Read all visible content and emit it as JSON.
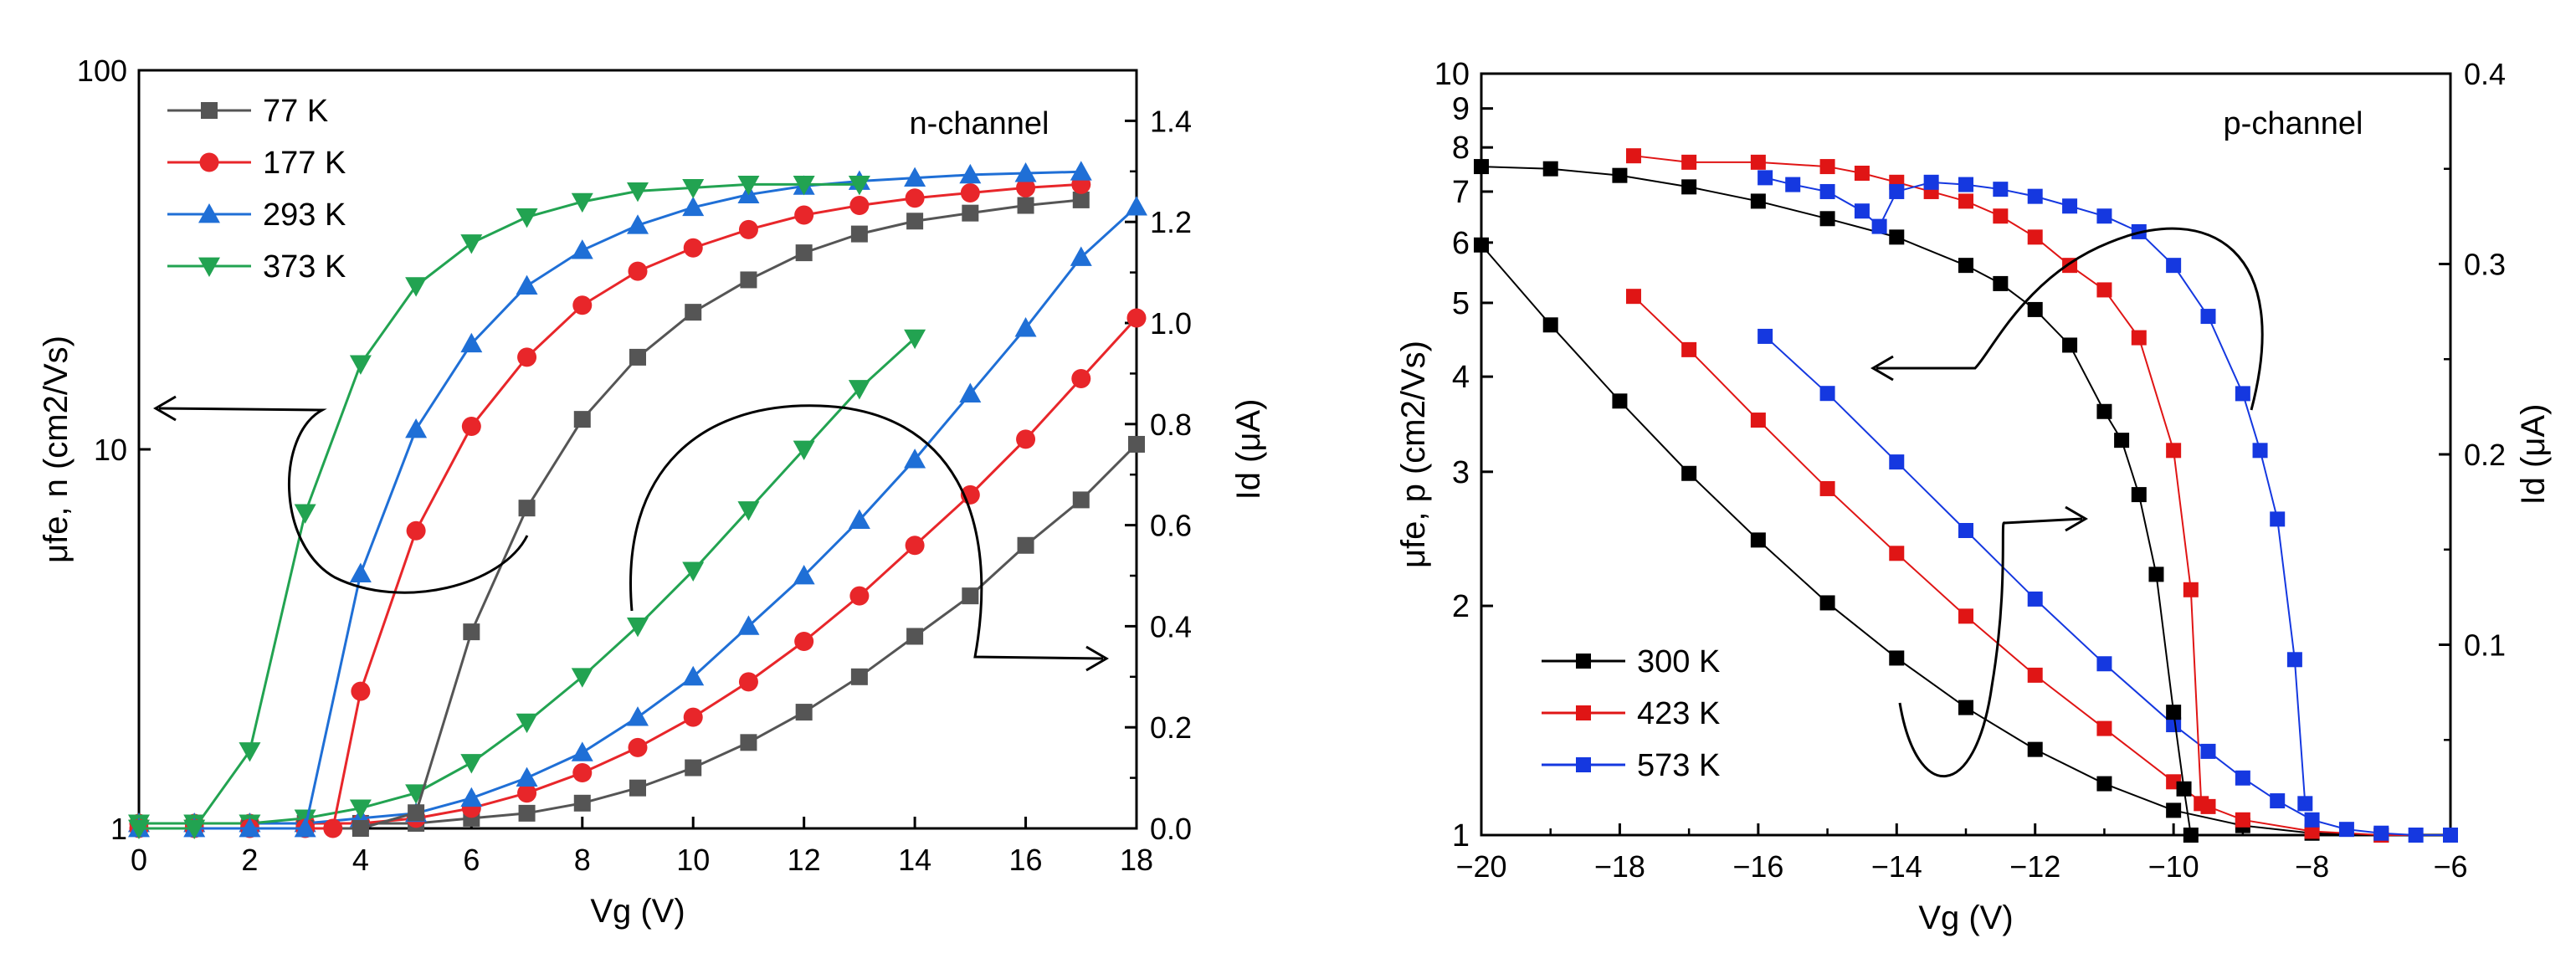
{
  "chart_data": [
    {
      "type": "line",
      "panel": "n-channel",
      "annotation": "n-channel",
      "xlabel": "Vg (V)",
      "ylabel_left": "μfe, n (cm2/Vs)",
      "ylabel_right": "Id (μA)",
      "xlim": [
        0,
        18
      ],
      "xticks": [
        "0",
        "2",
        "4",
        "6",
        "8",
        "10",
        "12",
        "14",
        "16",
        "18"
      ],
      "ylim_left": [
        1,
        100
      ],
      "yscale_left": "log",
      "yticks_left": [
        "1",
        "10",
        "100"
      ],
      "ylim_right": [
        0,
        1.5
      ],
      "yticks_right": [
        "0.0",
        "0.2",
        "0.4",
        "0.6",
        "0.8",
        "1.0",
        "1.2",
        "1.4"
      ],
      "legend_position": "top-left",
      "mobility": [
        {
          "name": "77 K",
          "color": "#555555",
          "marker": "square",
          "x": [
            0,
            1,
            2,
            3,
            4,
            5,
            6,
            7,
            8,
            9,
            10,
            11,
            12,
            13,
            14,
            15,
            16,
            17
          ],
          "y": [
            1,
            1,
            1,
            1,
            1,
            1.1,
            3.3,
            7,
            12,
            17.5,
            23,
            28,
            33,
            37,
            40,
            42,
            44,
            45.5
          ]
        },
        {
          "name": "177 K",
          "color": "#e8262a",
          "marker": "circle",
          "x": [
            0,
            1,
            2,
            3,
            3.5,
            4,
            5,
            6,
            7,
            8,
            9,
            10,
            11,
            12,
            13,
            14,
            15,
            16,
            17
          ],
          "y": [
            1,
            1,
            1,
            1,
            1,
            2.3,
            6.1,
            11.5,
            17.5,
            24,
            29.5,
            34,
            38,
            41.5,
            44,
            46,
            47.5,
            49,
            50
          ]
        },
        {
          "name": "293 K",
          "color": "#1f6fd6",
          "marker": "triangle-up",
          "x": [
            0,
            1,
            2,
            3,
            4,
            5,
            6,
            7,
            8,
            9,
            10,
            11,
            12,
            13,
            14,
            15,
            16,
            17
          ],
          "y": [
            1,
            1,
            1,
            1,
            4.7,
            11.3,
            19,
            27,
            33.5,
            39,
            43.5,
            47,
            49.5,
            51,
            52,
            53,
            53.5,
            54
          ]
        },
        {
          "name": "373 K",
          "color": "#22a351",
          "marker": "triangle-down",
          "x": [
            0,
            1,
            2,
            3,
            4,
            5,
            6,
            7,
            8,
            9,
            10,
            11,
            12,
            13
          ],
          "y": [
            1,
            1,
            1.6,
            6.8,
            16.8,
            27,
            35,
            41,
            45,
            48,
            49,
            50,
            50,
            50
          ]
        }
      ],
      "current": [
        {
          "name": "77 K",
          "color": "#555555",
          "marker": "square",
          "x": [
            0,
            1,
            2,
            3,
            4,
            5,
            6,
            7,
            8,
            9,
            10,
            11,
            12,
            13,
            14,
            15,
            16,
            17,
            18
          ],
          "y": [
            0.01,
            0.01,
            0.01,
            0.01,
            0.01,
            0.01,
            0.02,
            0.03,
            0.05,
            0.08,
            0.12,
            0.17,
            0.23,
            0.3,
            0.38,
            0.46,
            0.56,
            0.65,
            0.76
          ]
        },
        {
          "name": "177 K",
          "color": "#e8262a",
          "marker": "circle",
          "x": [
            0,
            1,
            2,
            3,
            4,
            5,
            6,
            7,
            8,
            9,
            10,
            11,
            12,
            13,
            14,
            15,
            16,
            17,
            18
          ],
          "y": [
            0.01,
            0.01,
            0.01,
            0.01,
            0.01,
            0.02,
            0.04,
            0.07,
            0.11,
            0.16,
            0.22,
            0.29,
            0.37,
            0.46,
            0.56,
            0.66,
            0.77,
            0.89,
            1.01
          ]
        },
        {
          "name": "293 K",
          "color": "#1f6fd6",
          "marker": "triangle-up",
          "x": [
            0,
            1,
            2,
            3,
            4,
            5,
            6,
            7,
            8,
            9,
            10,
            11,
            12,
            13,
            14,
            15,
            16,
            17,
            18
          ],
          "y": [
            0.01,
            0.01,
            0.01,
            0.01,
            0.02,
            0.03,
            0.06,
            0.1,
            0.15,
            0.22,
            0.3,
            0.4,
            0.5,
            0.61,
            0.73,
            0.86,
            0.99,
            1.13,
            1.23
          ]
        },
        {
          "name": "373 K",
          "color": "#22a351",
          "marker": "triangle-down",
          "x": [
            0,
            1,
            2,
            3,
            4,
            5,
            6,
            7,
            8,
            9,
            10,
            11,
            12,
            13,
            14
          ],
          "y": [
            0.01,
            0.01,
            0.01,
            0.02,
            0.04,
            0.07,
            0.13,
            0.21,
            0.3,
            0.4,
            0.51,
            0.63,
            0.75,
            0.87,
            0.97
          ]
        }
      ]
    },
    {
      "type": "scatter",
      "panel": "p-channel",
      "annotation": "p-channel",
      "xlabel": "Vg (V)",
      "ylabel_left": "μfe, p (cm2/Vs)",
      "ylabel_right": "Id (μA)",
      "xlim": [
        -20,
        -6
      ],
      "xticks": [
        "-20",
        "-18",
        "-16",
        "-14",
        "-12",
        "-10",
        "-8",
        "-6"
      ],
      "ylim_left": [
        1,
        10
      ],
      "yscale_left": "log",
      "yticks_left": [
        "1",
        "2",
        "3",
        "4",
        "5",
        "6",
        "7",
        "8",
        "9",
        "10"
      ],
      "ylim_right": [
        0,
        0.4
      ],
      "yticks_right": [
        "0.1",
        "0.2",
        "0.3",
        "0.4"
      ],
      "legend_position": "bottom-left",
      "mobility": [
        {
          "name": "300 K",
          "color": "#000000",
          "marker": "square",
          "x": [
            -20,
            -19,
            -18,
            -17,
            -16,
            -15,
            -14,
            -13,
            -12.5,
            -12,
            -11.5,
            -11,
            -10.75,
            -10.5,
            -10.25,
            -10,
            -9.85,
            -9.75
          ],
          "y": [
            7.55,
            7.5,
            7.35,
            7.1,
            6.8,
            6.45,
            6.1,
            5.6,
            5.3,
            4.9,
            4.4,
            3.6,
            3.3,
            2.8,
            2.2,
            1.45,
            1.15,
            1.0
          ]
        },
        {
          "name": "423 K",
          "color": "#e01515",
          "marker": "square",
          "x": [
            -17.8,
            -17,
            -16,
            -15,
            -14.5,
            -14,
            -13.5,
            -13,
            -12.5,
            -12,
            -11.5,
            -11,
            -10.5,
            -10,
            -9.75,
            -9.6
          ],
          "y": [
            7.8,
            7.65,
            7.65,
            7.55,
            7.4,
            7.2,
            7.0,
            6.8,
            6.5,
            6.1,
            5.6,
            5.2,
            4.5,
            3.2,
            2.1,
            1.1
          ]
        },
        {
          "name": "573 K",
          "color": "#1538e0",
          "marker": "square",
          "x": [
            -15.9,
            -15.5,
            -15,
            -14.5,
            -14.25,
            -14,
            -13.5,
            -13,
            -12.5,
            -12,
            -11.5,
            -11,
            -10.5,
            -10,
            -9.5,
            -9,
            -8.75,
            -8.5,
            -8.25,
            -8.1
          ],
          "y": [
            7.3,
            7.15,
            7.0,
            6.6,
            6.3,
            7.0,
            7.2,
            7.15,
            7.05,
            6.9,
            6.7,
            6.5,
            6.2,
            5.6,
            4.8,
            3.8,
            3.2,
            2.6,
            1.7,
            1.1
          ]
        }
      ],
      "current": [
        {
          "name": "300 K",
          "color": "#000000",
          "marker": "square",
          "x": [
            -20,
            -19,
            -18,
            -17,
            -16,
            -15,
            -14,
            -13,
            -12,
            -11,
            -10,
            -9,
            -8,
            -7,
            -6
          ],
          "y": [
            0.31,
            0.268,
            0.228,
            0.19,
            0.155,
            0.122,
            0.093,
            0.067,
            0.045,
            0.027,
            0.013,
            0.005,
            0.001,
            0,
            0
          ]
        },
        {
          "name": "423 K",
          "color": "#e01515",
          "marker": "square",
          "x": [
            -17.8,
            -17,
            -16,
            -15,
            -14,
            -13,
            -12,
            -11,
            -10,
            -9.5,
            -9,
            -8,
            -7,
            -6
          ],
          "y": [
            0.283,
            0.255,
            0.218,
            0.182,
            0.148,
            0.115,
            0.084,
            0.056,
            0.028,
            0.015,
            0.008,
            0.002,
            0,
            0
          ]
        },
        {
          "name": "573 K",
          "color": "#1538e0",
          "marker": "square",
          "x": [
            -15.9,
            -15,
            -14,
            -13,
            -12,
            -11,
            -10,
            -9.5,
            -9,
            -8.5,
            -8,
            -7.5,
            -7,
            -6.5,
            -6
          ],
          "y": [
            0.262,
            0.232,
            0.196,
            0.16,
            0.124,
            0.09,
            0.058,
            0.044,
            0.03,
            0.018,
            0.008,
            0.003,
            0.001,
            0,
            0
          ]
        }
      ]
    }
  ]
}
